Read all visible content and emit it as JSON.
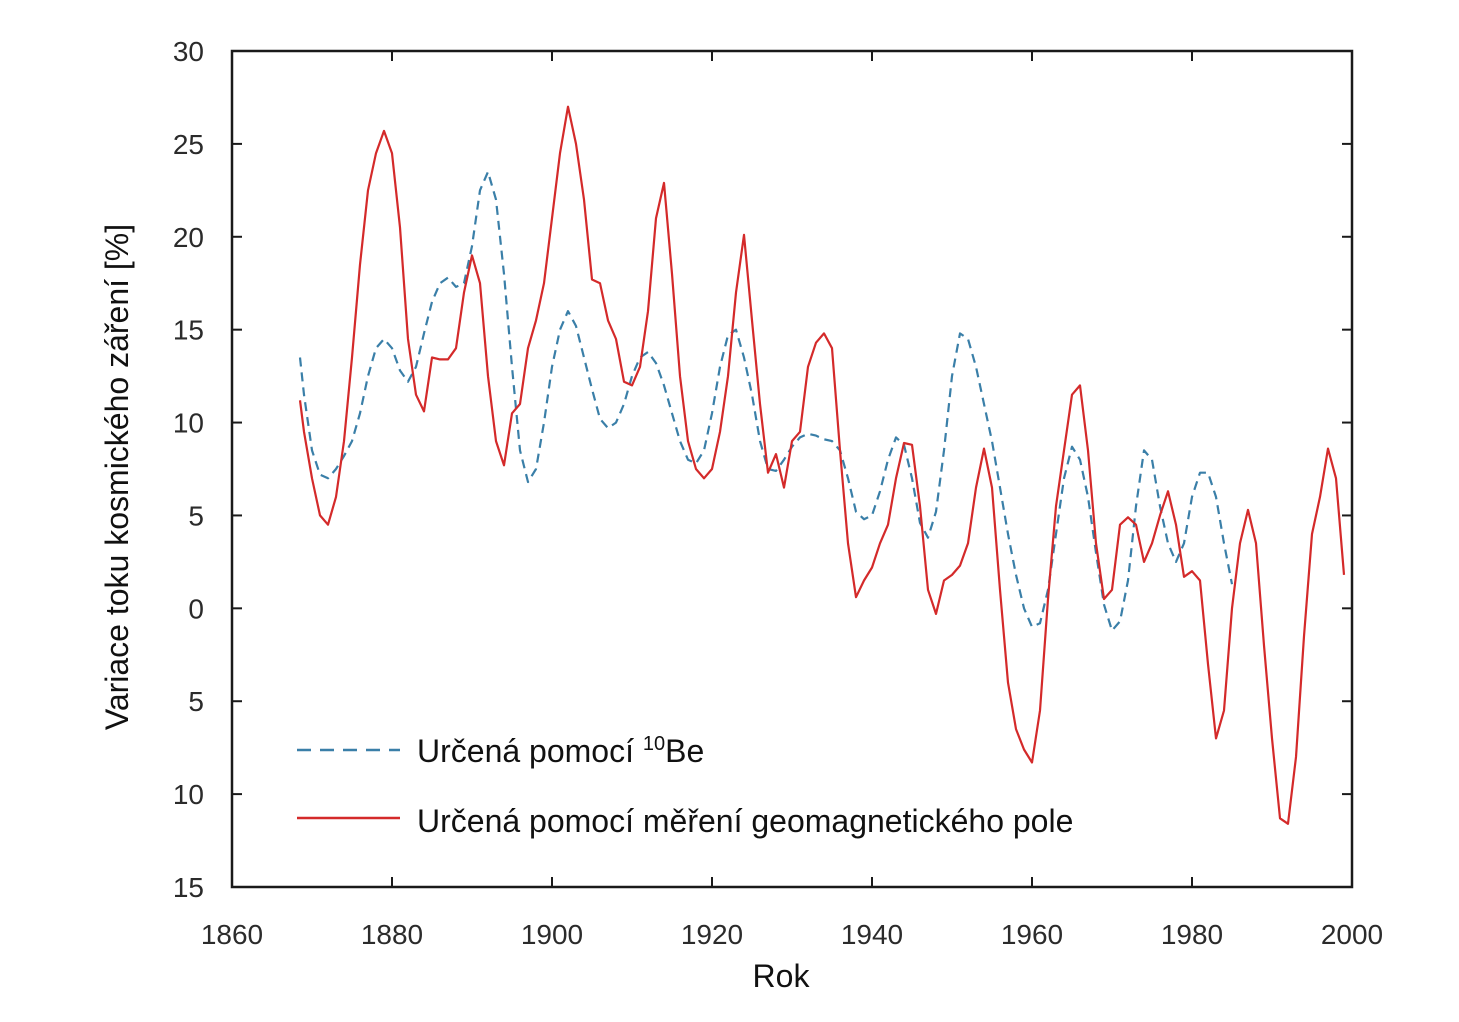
{
  "chart_data": {
    "type": "line",
    "xlabel": "Rok",
    "ylabel": "Variace toku kosmického záření [%]",
    "xlim": [
      1860,
      2000
    ],
    "ylim": [
      -15,
      30
    ],
    "x_ticks": [
      1860,
      1880,
      1900,
      1920,
      1940,
      1960,
      1980,
      2000
    ],
    "y_ticks": [
      30,
      25,
      20,
      15,
      10,
      5,
      0,
      -5,
      -10,
      -15
    ],
    "y_tick_labels": [
      "30",
      "25",
      "20",
      "15",
      "10",
      "5",
      "0",
      "5",
      "10",
      "15"
    ],
    "grid": false,
    "legend_position": "bottom-left",
    "series": [
      {
        "name_prefix": "Určená pomocí ",
        "name_sup": "10",
        "name_suffix": "Be",
        "style": "dashed",
        "color": "#3a7fa8",
        "points": [
          [
            1868.5,
            13.5
          ],
          [
            1869,
            11.5
          ],
          [
            1870,
            8.5
          ],
          [
            1871,
            7.2
          ],
          [
            1872,
            7.0
          ],
          [
            1873,
            7.5
          ],
          [
            1874,
            8.2
          ],
          [
            1875,
            9.0
          ],
          [
            1876,
            10.5
          ],
          [
            1877,
            12.5
          ],
          [
            1878,
            14.0
          ],
          [
            1879,
            14.5
          ],
          [
            1880,
            14.0
          ],
          [
            1881,
            12.8
          ],
          [
            1882,
            12.2
          ],
          [
            1883,
            13.0
          ],
          [
            1884,
            14.8
          ],
          [
            1885,
            16.5
          ],
          [
            1886,
            17.5
          ],
          [
            1887,
            17.8
          ],
          [
            1888,
            17.3
          ],
          [
            1889,
            17.5
          ],
          [
            1890,
            19.5
          ],
          [
            1891,
            22.5
          ],
          [
            1892,
            23.5
          ],
          [
            1893,
            22.0
          ],
          [
            1894,
            18.0
          ],
          [
            1895,
            13.0
          ],
          [
            1896,
            8.5
          ],
          [
            1897,
            6.8
          ],
          [
            1898,
            7.5
          ],
          [
            1899,
            10.0
          ],
          [
            1900,
            13.0
          ],
          [
            1901,
            15.0
          ],
          [
            1902,
            16.0
          ],
          [
            1903,
            15.2
          ],
          [
            1904,
            13.5
          ],
          [
            1905,
            11.8
          ],
          [
            1906,
            10.2
          ],
          [
            1907,
            9.7
          ],
          [
            1908,
            10.0
          ],
          [
            1909,
            11.0
          ],
          [
            1910,
            12.5
          ],
          [
            1911,
            13.5
          ],
          [
            1912,
            13.8
          ],
          [
            1913,
            13.2
          ],
          [
            1914,
            12.0
          ],
          [
            1915,
            10.5
          ],
          [
            1916,
            9.0
          ],
          [
            1917,
            8.0
          ],
          [
            1918,
            7.8
          ],
          [
            1919,
            8.5
          ],
          [
            1920,
            10.5
          ],
          [
            1921,
            13.0
          ],
          [
            1922,
            14.7
          ],
          [
            1923,
            15.0
          ],
          [
            1924,
            13.5
          ],
          [
            1925,
            11.5
          ],
          [
            1926,
            9.0
          ],
          [
            1927,
            7.5
          ],
          [
            1928,
            7.4
          ],
          [
            1929,
            8.0
          ],
          [
            1930,
            8.7
          ],
          [
            1931,
            9.2
          ],
          [
            1932,
            9.4
          ],
          [
            1933,
            9.3
          ],
          [
            1934,
            9.1
          ],
          [
            1935,
            9.0
          ],
          [
            1936,
            8.5
          ],
          [
            1937,
            7.0
          ],
          [
            1938,
            5.2
          ],
          [
            1939,
            4.8
          ],
          [
            1940,
            5.0
          ],
          [
            1941,
            6.3
          ],
          [
            1942,
            8.0
          ],
          [
            1943,
            9.2
          ],
          [
            1944,
            8.8
          ],
          [
            1945,
            7.0
          ],
          [
            1946,
            4.6
          ],
          [
            1947,
            3.8
          ],
          [
            1948,
            5.2
          ],
          [
            1949,
            8.5
          ],
          [
            1950,
            12.5
          ],
          [
            1951,
            14.8
          ],
          [
            1952,
            14.5
          ],
          [
            1953,
            13.0
          ],
          [
            1954,
            11.0
          ],
          [
            1955,
            9.0
          ],
          [
            1956,
            6.5
          ],
          [
            1957,
            4.0
          ],
          [
            1958,
            1.8
          ],
          [
            1959,
            0.0
          ],
          [
            1960,
            -1.0
          ],
          [
            1961,
            -0.8
          ],
          [
            1962,
            1.0
          ],
          [
            1963,
            4.0
          ],
          [
            1964,
            7.0
          ],
          [
            1965,
            8.7
          ],
          [
            1966,
            8.0
          ],
          [
            1967,
            6.0
          ],
          [
            1968,
            3.0
          ],
          [
            1969,
            0.2
          ],
          [
            1970,
            -1.2
          ],
          [
            1971,
            -0.7
          ],
          [
            1972,
            1.5
          ],
          [
            1973,
            5.5
          ],
          [
            1974,
            8.5
          ],
          [
            1975,
            8.0
          ],
          [
            1976,
            5.5
          ],
          [
            1977,
            3.5
          ],
          [
            1978,
            2.5
          ],
          [
            1979,
            3.5
          ],
          [
            1980,
            6.0
          ],
          [
            1981,
            7.3
          ],
          [
            1982,
            7.3
          ],
          [
            1983,
            6.0
          ],
          [
            1984,
            3.5
          ],
          [
            1985,
            1.3
          ]
        ]
      },
      {
        "name_prefix": "Určená pomocí měření geomagnetického pole",
        "name_sup": "",
        "name_suffix": "",
        "style": "solid",
        "color": "#d42a2a",
        "points": [
          [
            1868.5,
            11.2
          ],
          [
            1869,
            9.5
          ],
          [
            1870,
            7.0
          ],
          [
            1871,
            5.0
          ],
          [
            1872,
            4.5
          ],
          [
            1873,
            6.0
          ],
          [
            1874,
            9.0
          ],
          [
            1875,
            13.5
          ],
          [
            1876,
            18.5
          ],
          [
            1877,
            22.5
          ],
          [
            1878,
            24.5
          ],
          [
            1879,
            25.7
          ],
          [
            1880,
            24.5
          ],
          [
            1881,
            20.5
          ],
          [
            1882,
            14.5
          ],
          [
            1883,
            11.5
          ],
          [
            1884,
            10.6
          ],
          [
            1885,
            13.5
          ],
          [
            1886,
            13.4
          ],
          [
            1887,
            13.4
          ],
          [
            1888,
            14.0
          ],
          [
            1889,
            17.0
          ],
          [
            1890,
            19.0
          ],
          [
            1891,
            17.5
          ],
          [
            1892,
            12.5
          ],
          [
            1893,
            9.0
          ],
          [
            1894,
            7.7
          ],
          [
            1895,
            10.5
          ],
          [
            1896,
            11.0
          ],
          [
            1897,
            14.0
          ],
          [
            1898,
            15.5
          ],
          [
            1899,
            17.5
          ],
          [
            1900,
            21.0
          ],
          [
            1901,
            24.5
          ],
          [
            1902,
            27.0
          ],
          [
            1903,
            25.0
          ],
          [
            1904,
            22.0
          ],
          [
            1905,
            17.7
          ],
          [
            1906,
            17.5
          ],
          [
            1907,
            15.5
          ],
          [
            1908,
            14.5
          ],
          [
            1909,
            12.2
          ],
          [
            1910,
            12.0
          ],
          [
            1911,
            13.0
          ],
          [
            1912,
            16.0
          ],
          [
            1913,
            21.0
          ],
          [
            1914,
            22.9
          ],
          [
            1915,
            18.0
          ],
          [
            1916,
            12.5
          ],
          [
            1917,
            9.0
          ],
          [
            1918,
            7.5
          ],
          [
            1919,
            7.0
          ],
          [
            1920,
            7.5
          ],
          [
            1921,
            9.5
          ],
          [
            1922,
            12.5
          ],
          [
            1923,
            17.0
          ],
          [
            1924,
            20.1
          ],
          [
            1925,
            15.5
          ],
          [
            1926,
            11.0
          ],
          [
            1927,
            7.3
          ],
          [
            1928,
            8.3
          ],
          [
            1929,
            6.5
          ],
          [
            1930,
            9.0
          ],
          [
            1931,
            9.5
          ],
          [
            1932,
            13.0
          ],
          [
            1933,
            14.3
          ],
          [
            1934,
            14.8
          ],
          [
            1935,
            14.0
          ],
          [
            1936,
            8.5
          ],
          [
            1937,
            3.5
          ],
          [
            1938,
            0.6
          ],
          [
            1939,
            1.5
          ],
          [
            1940,
            2.2
          ],
          [
            1941,
            3.5
          ],
          [
            1942,
            4.5
          ],
          [
            1943,
            7.0
          ],
          [
            1944,
            8.9
          ],
          [
            1945,
            8.8
          ],
          [
            1946,
            5.5
          ],
          [
            1947,
            1.0
          ],
          [
            1948,
            -0.3
          ],
          [
            1949,
            1.5
          ],
          [
            1950,
            1.8
          ],
          [
            1951,
            2.3
          ],
          [
            1952,
            3.5
          ],
          [
            1953,
            6.5
          ],
          [
            1954,
            8.6
          ],
          [
            1955,
            6.5
          ],
          [
            1956,
            1.0
          ],
          [
            1957,
            -4.0
          ],
          [
            1958,
            -6.5
          ],
          [
            1959,
            -7.6
          ],
          [
            1960,
            -8.3
          ],
          [
            1961,
            -5.5
          ],
          [
            1962,
            0.5
          ],
          [
            1963,
            5.5
          ],
          [
            1964,
            8.5
          ],
          [
            1965,
            11.5
          ],
          [
            1966,
            12.0
          ],
          [
            1967,
            8.5
          ],
          [
            1968,
            3.5
          ],
          [
            1969,
            0.5
          ],
          [
            1970,
            1.0
          ],
          [
            1971,
            4.5
          ],
          [
            1972,
            4.9
          ],
          [
            1973,
            4.5
          ],
          [
            1974,
            2.5
          ],
          [
            1975,
            3.5
          ],
          [
            1976,
            5.0
          ],
          [
            1977,
            6.3
          ],
          [
            1978,
            4.5
          ],
          [
            1979,
            1.7
          ],
          [
            1980,
            2.0
          ],
          [
            1981,
            1.5
          ],
          [
            1982,
            -3.0
          ],
          [
            1983,
            -7.0
          ],
          [
            1984,
            -5.5
          ],
          [
            1985,
            0.0
          ],
          [
            1986,
            3.5
          ],
          [
            1987,
            5.3
          ],
          [
            1988,
            3.5
          ],
          [
            1989,
            -2.0
          ],
          [
            1990,
            -7.0
          ],
          [
            1991,
            -11.3
          ],
          [
            1992,
            -11.6
          ],
          [
            1993,
            -8.0
          ],
          [
            1994,
            -1.5
          ],
          [
            1995,
            4.0
          ],
          [
            1996,
            6.0
          ],
          [
            1997,
            8.6
          ],
          [
            1998,
            7.0
          ],
          [
            1999,
            1.8
          ]
        ]
      }
    ]
  }
}
